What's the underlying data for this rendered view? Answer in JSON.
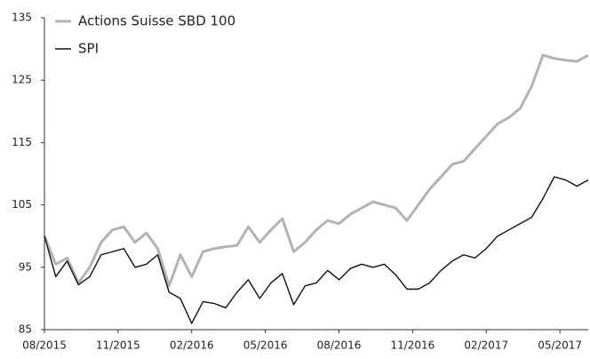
{
  "chart_data": {
    "type": "line",
    "x": [
      0,
      2,
      4,
      6,
      8,
      10,
      12,
      14,
      16,
      18,
      20,
      22,
      24,
      26,
      28,
      30,
      32,
      34,
      36,
      38,
      40,
      42,
      44,
      46,
      48,
      50,
      52,
      54,
      56,
      58,
      60,
      62,
      64,
      66,
      68,
      70,
      72,
      74,
      76,
      78,
      80,
      82,
      84,
      86,
      88,
      90,
      92,
      94,
      96
    ],
    "series": [
      {
        "name": "Actions Suisse SBD 100",
        "color": "#b3b3b3",
        "values": [
          100,
          95.5,
          96.5,
          92.5,
          95,
          99,
          101,
          101.5,
          99,
          100.5,
          98,
          92,
          97,
          93.5,
          97.5,
          98,
          98.3,
          98.5,
          101.5,
          99,
          101,
          102.8,
          97.5,
          99,
          101,
          102.5,
          102,
          103.5,
          104.5,
          105.5,
          105,
          104.5,
          102.5,
          105,
          107.5,
          109.5,
          111.5,
          112,
          114,
          116,
          118,
          119,
          120.5,
          124,
          129,
          128.5,
          128.2,
          128,
          129
        ]
      },
      {
        "name": "SPI",
        "color": "#111111",
        "values": [
          100,
          93.5,
          96,
          92.2,
          93.5,
          97,
          97.5,
          98,
          95,
          95.5,
          97,
          91,
          90,
          86,
          89.5,
          89.2,
          88.5,
          91,
          93,
          90,
          92.5,
          94,
          89,
          92,
          92.5,
          94.5,
          93,
          94.8,
          95.5,
          95,
          95.5,
          93.8,
          91.5,
          91.5,
          92.5,
          94.5,
          96,
          97,
          96.5,
          98,
          100,
          101,
          102,
          103,
          106,
          109.5,
          109,
          108,
          109
        ]
      }
    ],
    "xlim": [
      0,
      96
    ],
    "xticks": [
      {
        "value": 0,
        "label": "08/2015"
      },
      {
        "value": 13,
        "label": "11/2015"
      },
      {
        "value": 26,
        "label": "02/2016"
      },
      {
        "value": 39,
        "label": "05/2016"
      },
      {
        "value": 52,
        "label": "08/2016"
      },
      {
        "value": 65,
        "label": "11/2016"
      },
      {
        "value": 78,
        "label": "02/2017"
      },
      {
        "value": 91,
        "label": "05/2017"
      }
    ],
    "ylim": [
      85,
      135
    ],
    "yticks": [
      85,
      95,
      105,
      115,
      125,
      135
    ]
  }
}
